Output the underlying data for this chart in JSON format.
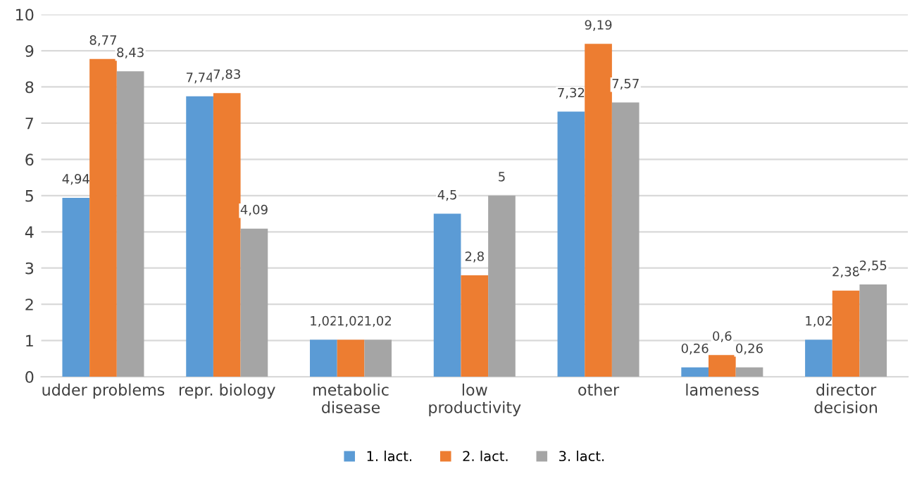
{
  "chart_data": {
    "type": "bar",
    "categories": [
      "udder problems",
      "repr. biology",
      "metabolic\ndisease",
      "low\nproductivity",
      "other",
      "lameness",
      "director\ndecision"
    ],
    "series": [
      {
        "name": "1. lact.",
        "color": "#5b9bd5",
        "values": [
          4.94,
          7.74,
          1.02,
          4.5,
          7.32,
          0.26,
          1.02
        ],
        "value_labels": [
          "4,94",
          "7,74",
          "1,02",
          "4,5",
          "7,32",
          "0,26",
          "1,02"
        ]
      },
      {
        "name": "2. lact.",
        "color": "#ed7d31",
        "values": [
          8.77,
          7.83,
          1.02,
          2.8,
          9.19,
          0.6,
          2.38
        ],
        "value_labels": [
          "8,77",
          "7,83",
          "1,02",
          "2,8",
          "9,19",
          "0,6",
          "2,38"
        ]
      },
      {
        "name": "3. lact.",
        "color": "#a5a5a5",
        "values": [
          8.43,
          4.09,
          1.02,
          5,
          7.57,
          0.26,
          2.55
        ],
        "value_labels": [
          "8,43",
          "4,09",
          "1,02",
          "5",
          "7,57",
          "0,26",
          "2,55"
        ]
      }
    ],
    "ylim": [
      0,
      10
    ],
    "yticks": [
      0,
      1,
      2,
      3,
      4,
      5,
      6,
      7,
      8,
      9,
      10
    ],
    "grid": "y",
    "legend": "bottom"
  }
}
